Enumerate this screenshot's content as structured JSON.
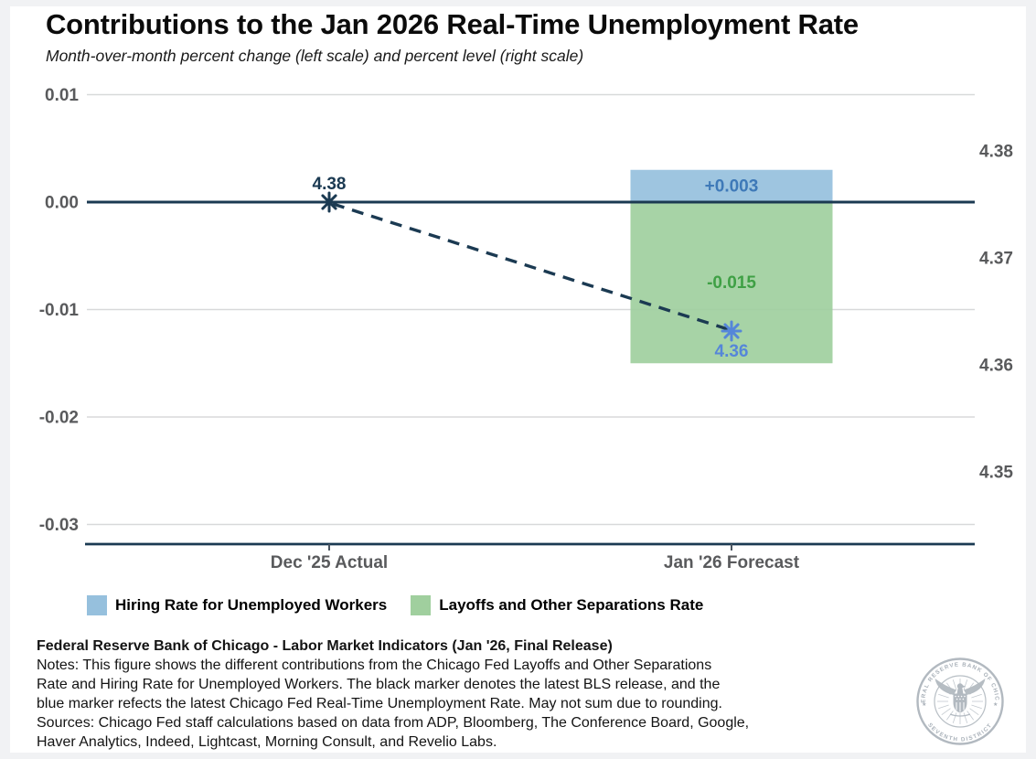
{
  "page": {
    "background": "#f1f2f4",
    "panel_background": "#ffffff"
  },
  "header": {
    "title": "Contributions to the Jan 2026 Real-Time Unemployment Rate",
    "subtitle": "Month-over-month percent change (left scale) and percent level (right scale)"
  },
  "chart_data": {
    "type": "bar",
    "title": "Contributions to the Jan 2026 Real-Time Unemployment Rate",
    "subtitle": "Month-over-month percent change (left scale) and percent level (right scale)",
    "categories": [
      "Dec '25 Actual",
      "Jan '26 Forecast"
    ],
    "series": [
      {
        "name": "Hiring Rate for Unemployed Workers",
        "values": [
          null,
          0.003
        ],
        "data_label": "+0.003",
        "color": "#96c0dd",
        "label_color": "#3e79b8"
      },
      {
        "name": "Layoffs and Other Separations Rate",
        "values": [
          null,
          -0.015
        ],
        "data_label": "-0.015",
        "color": "#a0cf9e",
        "label_color": "#3fa045"
      }
    ],
    "markers": [
      {
        "name": "latest-bls-release",
        "category_index": 0,
        "change": 0,
        "level_label": "4.38",
        "color": "#1b3a52",
        "label_position": "above"
      },
      {
        "name": "chicago-fed-real-time-rate",
        "category_index": 1,
        "change": -0.012,
        "level_label": "4.36",
        "color": "#5586d9",
        "label_position": "below"
      }
    ],
    "connector": {
      "style": "dashed",
      "color": "#1b3a52"
    },
    "left_axis": {
      "ticks": [
        0.01,
        0,
        -0.01,
        -0.02,
        -0.03
      ],
      "tick_labels": [
        "0.01",
        "0.00",
        "-0.01",
        "-0.02",
        "-0.03"
      ]
    },
    "right_axis": {
      "tick_labels": [
        "4.38",
        "4.37",
        "4.36",
        "4.35"
      ]
    },
    "zero_line_color": "#1b3a52",
    "grid_color": "#d8d9da",
    "axis_label_color": "#595a5c",
    "tick_color": "#4a5560"
  },
  "legend": {
    "items": [
      {
        "label": "Hiring Rate for Unemployed Workers",
        "color": "#96c0dd"
      },
      {
        "label": "Layoffs and Other Separations Rate",
        "color": "#a0cf9e"
      }
    ]
  },
  "footer": {
    "source_bold": "Federal Reserve Bank of Chicago - Labor Market Indicators (Jan '26, Final Release)",
    "lines": [
      "Notes: This figure shows the different contributions from the Chicago Fed Layoffs and Other Separations",
      "Rate and Hiring Rate for Unemployed Workers. The black marker denotes the latest BLS release, and the",
      "blue marker refects the latest Chicago Fed Real-Time Unemployment Rate. May not sum due to rounding.",
      "Sources: Chicago Fed staff calculations based on data from ADP, Bloomberg, The Conference Board, Google,",
      "Haver Analytics, Indeed, Lightcast, Morning Consult, and Revelio Labs."
    ]
  },
  "seal": {
    "top_text": "FEDERAL RESERVE BANK OF CHICAGO",
    "bottom_text": "SEVENTH DISTRICT",
    "color": "#aeb6bd"
  }
}
